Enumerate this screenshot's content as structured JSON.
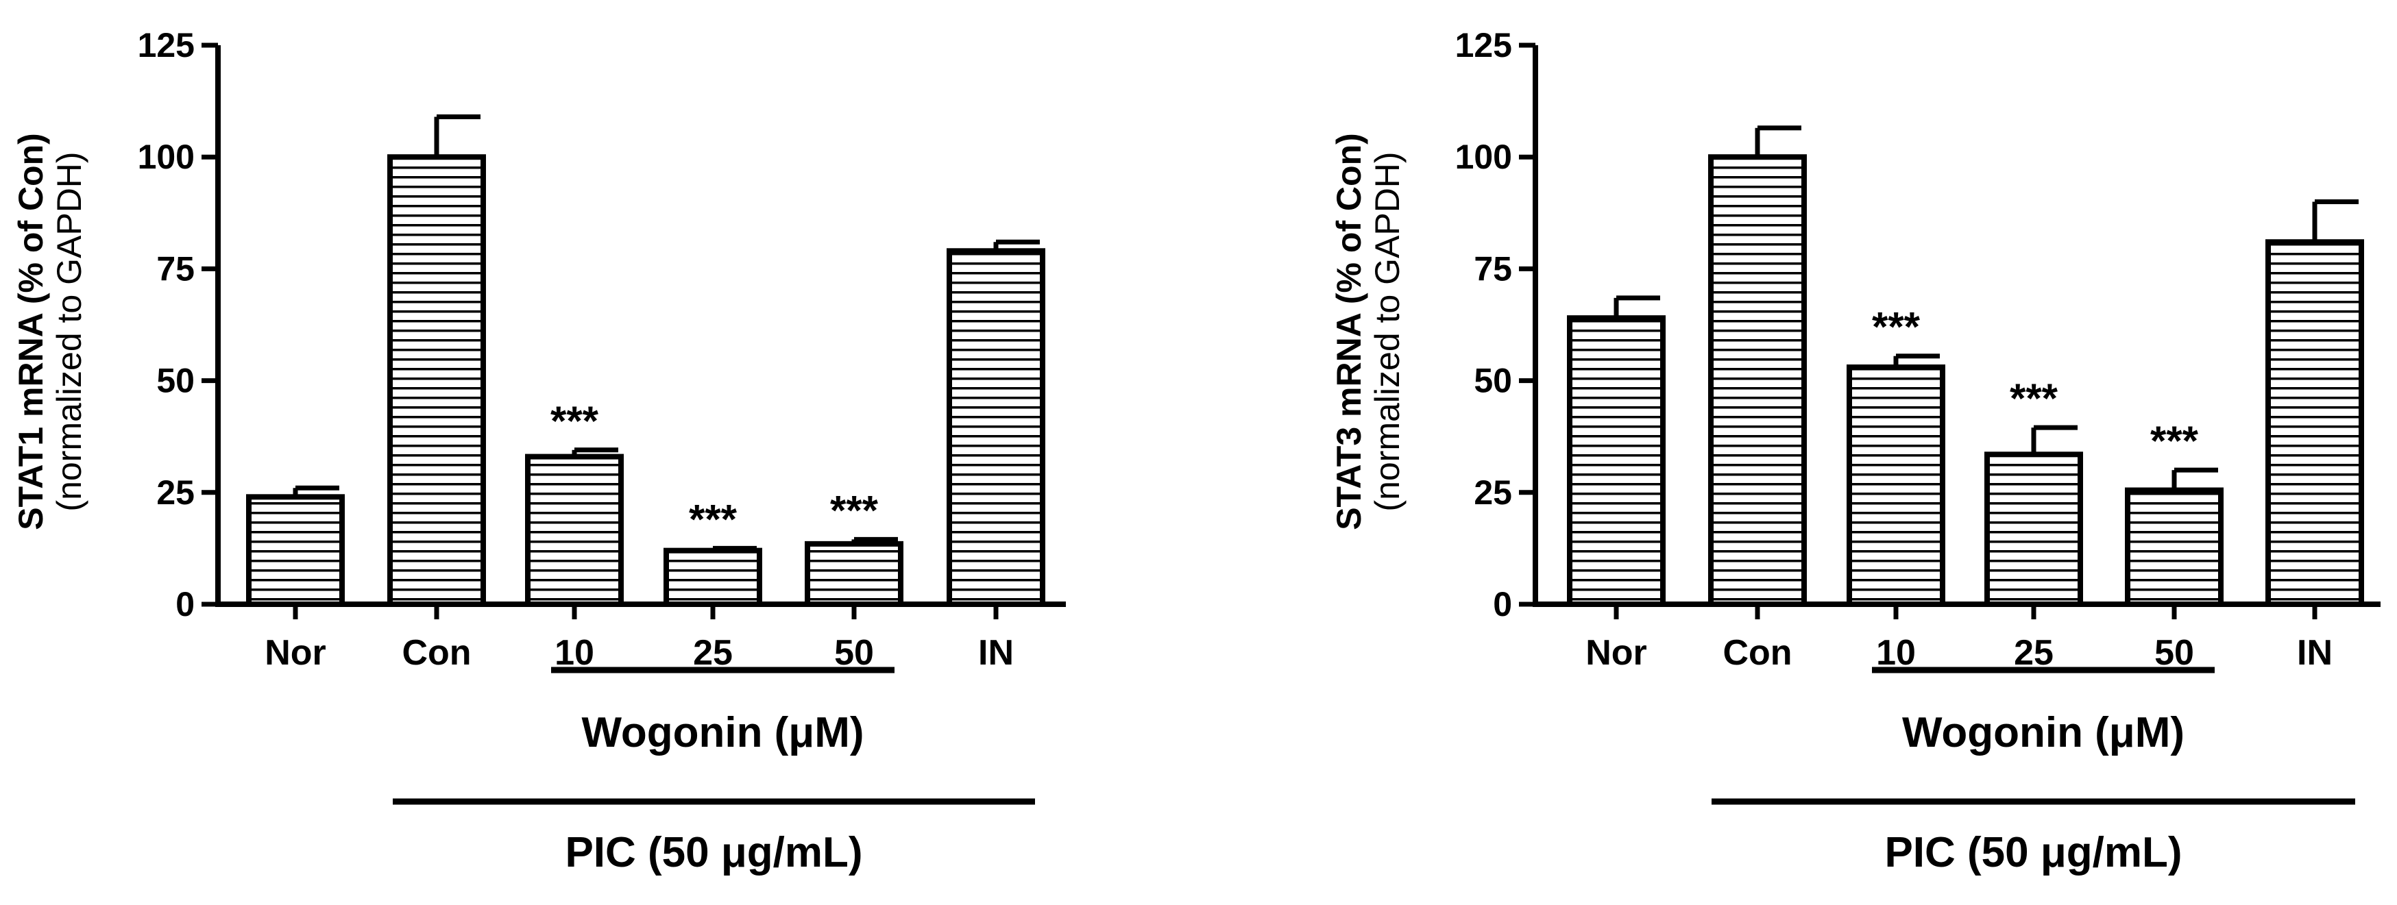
{
  "chart_data": [
    {
      "type": "bar",
      "categories": [
        "Nor",
        "Con",
        "10",
        "25",
        "50",
        "IN"
      ],
      "values": [
        24,
        100,
        33,
        12,
        13.5,
        79
      ],
      "errors": [
        2,
        9,
        1.5,
        0.5,
        1,
        2
      ],
      "significance": [
        "",
        "",
        "***",
        "***",
        "***",
        ""
      ],
      "ylabel": "STAT1 mRNA (% of Con)",
      "ylabel_sub": "(normalized to GAPDH)",
      "ylim": [
        0,
        125
      ],
      "yticks": [
        "0",
        "25",
        "50",
        "75",
        "100",
        "125"
      ],
      "group_labels": {
        "wogonin": "Wogonin (μM)",
        "pic": "PIC (50 μg/mL)"
      },
      "bar_pattern": "horizontal-stripes",
      "grid": false
    },
    {
      "type": "bar",
      "categories": [
        "Nor",
        "Con",
        "10",
        "25",
        "50",
        "IN"
      ],
      "values": [
        64,
        100,
        53,
        33.5,
        25.5,
        81
      ],
      "errors": [
        4.5,
        6.5,
        2.5,
        6,
        4.5,
        9
      ],
      "significance": [
        "",
        "",
        "***",
        "***",
        "***",
        ""
      ],
      "ylabel": "STAT3 mRNA (% of Con)",
      "ylabel_sub": "(normalized to GAPDH)",
      "ylim": [
        0,
        125
      ],
      "yticks": [
        "0",
        "25",
        "50",
        "75",
        "100",
        "125"
      ],
      "group_labels": {
        "wogonin": "Wogonin (μM)",
        "pic": "PIC (50 μg/mL)"
      },
      "bar_pattern": "horizontal-stripes",
      "grid": false
    }
  ]
}
